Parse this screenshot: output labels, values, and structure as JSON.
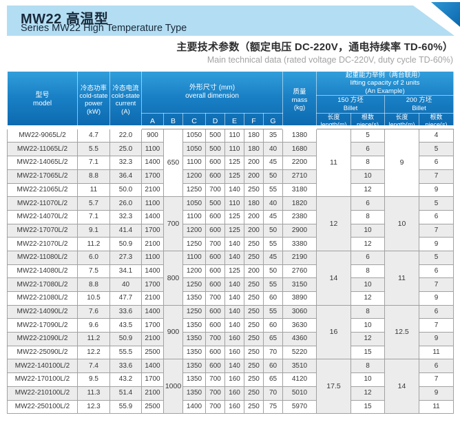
{
  "banner": {
    "title_cn": "MW22 高温型",
    "title_en": "Series MW22 High Temperature Type"
  },
  "subtitle": {
    "cn": "主要技术参数（额定电压 DC-220V，通电持续率 TD-60%）",
    "en": "Main technical data (rated voltage DC-220V, duty cycle TD-60%)"
  },
  "colors": {
    "banner_bg": "#b3ddf2",
    "banner_text": "#18293a",
    "header_blue_top": "#319edb",
    "header_blue_bottom": "#0d6ab0",
    "row_stripe": "#ececec",
    "grid_line": "#a0a0a0",
    "subtitle_en": "#a3a3a3"
  },
  "table": {
    "headers": {
      "model": "型号\nmodel",
      "power": "冷态功率\ncold-state\npower\n(kW)",
      "current": "冷态电流\ncold-state\ncurrent\n(A)",
      "dimensions": "外形尺寸 (mm)\noverall dimension",
      "letters": [
        "A",
        "B",
        "C",
        "D",
        "E",
        "F",
        "G"
      ],
      "mass": "质量\nmass\n(kg)",
      "lifting": "起重能力举例（两台联用）\nlifting capacity of 2 units\n(An Example)",
      "billet_150": "150 方坯\nBillet",
      "billet_200": "200 方坯\nBillet",
      "length": "长度\nlength(m)",
      "pieces": "根数\npiece(s)"
    },
    "groups": [
      {
        "b": "650",
        "len_150": "11",
        "len_200": "9",
        "rows": [
          {
            "model": "MW22-9065L/2",
            "power": "4.7",
            "current": "22.0",
            "a": "900",
            "c": "1050",
            "d": "500",
            "e": "110",
            "f": "180",
            "g": "35",
            "mass": "1380",
            "pcs_150": "5",
            "pcs_200": "4"
          },
          {
            "model": "MW22-11065L/2",
            "power": "5.5",
            "current": "25.0",
            "a": "1100",
            "c": "1050",
            "d": "500",
            "e": "110",
            "f": "180",
            "g": "40",
            "mass": "1680",
            "pcs_150": "6",
            "pcs_200": "5"
          },
          {
            "model": "MW22-14065L/2",
            "power": "7.1",
            "current": "32.3",
            "a": "1400",
            "c": "1100",
            "d": "600",
            "e": "125",
            "f": "200",
            "g": "45",
            "mass": "2200",
            "pcs_150": "8",
            "pcs_200": "6"
          },
          {
            "model": "MW22-17065L/2",
            "power": "8.8",
            "current": "36.4",
            "a": "1700",
            "c": "1200",
            "d": "600",
            "e": "125",
            "f": "200",
            "g": "50",
            "mass": "2710",
            "pcs_150": "10",
            "pcs_200": "7"
          },
          {
            "model": "MW22-21065L/2",
            "power": "11",
            "current": "50.0",
            "a": "2100",
            "c": "1250",
            "d": "700",
            "e": "140",
            "f": "250",
            "g": "55",
            "mass": "3180",
            "pcs_150": "12",
            "pcs_200": "9"
          }
        ]
      },
      {
        "b": "700",
        "len_150": "12",
        "len_200": "10",
        "rows": [
          {
            "model": "MW22-11070L/2",
            "power": "5.7",
            "current": "26.0",
            "a": "1100",
            "c": "1050",
            "d": "500",
            "e": "110",
            "f": "180",
            "g": "40",
            "mass": "1820",
            "pcs_150": "6",
            "pcs_200": "5"
          },
          {
            "model": "MW22-14070L/2",
            "power": "7.1",
            "current": "32.3",
            "a": "1400",
            "c": "1100",
            "d": "600",
            "e": "125",
            "f": "200",
            "g": "45",
            "mass": "2380",
            "pcs_150": "8",
            "pcs_200": "6"
          },
          {
            "model": "MW22-17070L/2",
            "power": "9.1",
            "current": "41.4",
            "a": "1700",
            "c": "1200",
            "d": "600",
            "e": "125",
            "f": "200",
            "g": "50",
            "mass": "2900",
            "pcs_150": "10",
            "pcs_200": "7"
          },
          {
            "model": "MW22-21070L/2",
            "power": "11.2",
            "current": "50.9",
            "a": "2100",
            "c": "1250",
            "d": "700",
            "e": "140",
            "f": "250",
            "g": "55",
            "mass": "3380",
            "pcs_150": "12",
            "pcs_200": "9"
          }
        ]
      },
      {
        "b": "800",
        "len_150": "14",
        "len_200": "11",
        "rows": [
          {
            "model": "MW22-11080L/2",
            "power": "6.0",
            "current": "27.3",
            "a": "1100",
            "c": "1100",
            "d": "600",
            "e": "140",
            "f": "250",
            "g": "45",
            "mass": "2190",
            "pcs_150": "6",
            "pcs_200": "5"
          },
          {
            "model": "MW22-14080L/2",
            "power": "7.5",
            "current": "34.1",
            "a": "1400",
            "c": "1200",
            "d": "600",
            "e": "125",
            "f": "200",
            "g": "50",
            "mass": "2760",
            "pcs_150": "8",
            "pcs_200": "6"
          },
          {
            "model": "MW22-17080L/2",
            "power": "8.8",
            "current": "40",
            "a": "1700",
            "c": "1250",
            "d": "600",
            "e": "140",
            "f": "250",
            "g": "55",
            "mass": "3150",
            "pcs_150": "10",
            "pcs_200": "7"
          },
          {
            "model": "MW22-21080L/2",
            "power": "10.5",
            "current": "47.7",
            "a": "2100",
            "c": "1350",
            "d": "700",
            "e": "140",
            "f": "250",
            "g": "60",
            "mass": "3890",
            "pcs_150": "12",
            "pcs_200": "9"
          }
        ]
      },
      {
        "b": "900",
        "len_150": "16",
        "len_200": "12.5",
        "rows": [
          {
            "model": "MW22-14090L/2",
            "power": "7.6",
            "current": "33.6",
            "a": "1400",
            "c": "1250",
            "d": "600",
            "e": "140",
            "f": "250",
            "g": "55",
            "mass": "3060",
            "pcs_150": "8",
            "pcs_200": "6"
          },
          {
            "model": "MW22-17090L/2",
            "power": "9.6",
            "current": "43.5",
            "a": "1700",
            "c": "1350",
            "d": "600",
            "e": "140",
            "f": "250",
            "g": "60",
            "mass": "3630",
            "pcs_150": "10",
            "pcs_200": "7"
          },
          {
            "model": "MW22-21090L/2",
            "power": "11.2",
            "current": "50.9",
            "a": "2100",
            "c": "1350",
            "d": "700",
            "e": "160",
            "f": "250",
            "g": "65",
            "mass": "4360",
            "pcs_150": "12",
            "pcs_200": "9"
          },
          {
            "model": "MW22-25090L/2",
            "power": "12.2",
            "current": "55.5",
            "a": "2500",
            "c": "1350",
            "d": "600",
            "e": "160",
            "f": "250",
            "g": "70",
            "mass": "5220",
            "pcs_150": "15",
            "pcs_200": "11"
          }
        ]
      },
      {
        "b": "1000",
        "len_150": "17.5",
        "len_200": "14",
        "rows": [
          {
            "model": "MW22-140100L/2",
            "power": "7.4",
            "current": "33.6",
            "a": "1400",
            "c": "1350",
            "d": "600",
            "e": "140",
            "f": "250",
            "g": "60",
            "mass": "3510",
            "pcs_150": "8",
            "pcs_200": "6"
          },
          {
            "model": "MW22-170100L/2",
            "power": "9.5",
            "current": "43.2",
            "a": "1700",
            "c": "1350",
            "d": "700",
            "e": "160",
            "f": "250",
            "g": "65",
            "mass": "4120",
            "pcs_150": "10",
            "pcs_200": "7"
          },
          {
            "model": "MW22-210100L/2",
            "power": "11.3",
            "current": "51.4",
            "a": "2100",
            "c": "1350",
            "d": "700",
            "e": "160",
            "f": "250",
            "g": "70",
            "mass": "5010",
            "pcs_150": "12",
            "pcs_200": "9"
          },
          {
            "model": "MW22-250100L/2",
            "power": "12.3",
            "current": "55.9",
            "a": "2500",
            "c": "1400",
            "d": "700",
            "e": "160",
            "f": "250",
            "g": "75",
            "mass": "5970",
            "pcs_150": "15",
            "pcs_200": "11"
          }
        ]
      }
    ]
  }
}
